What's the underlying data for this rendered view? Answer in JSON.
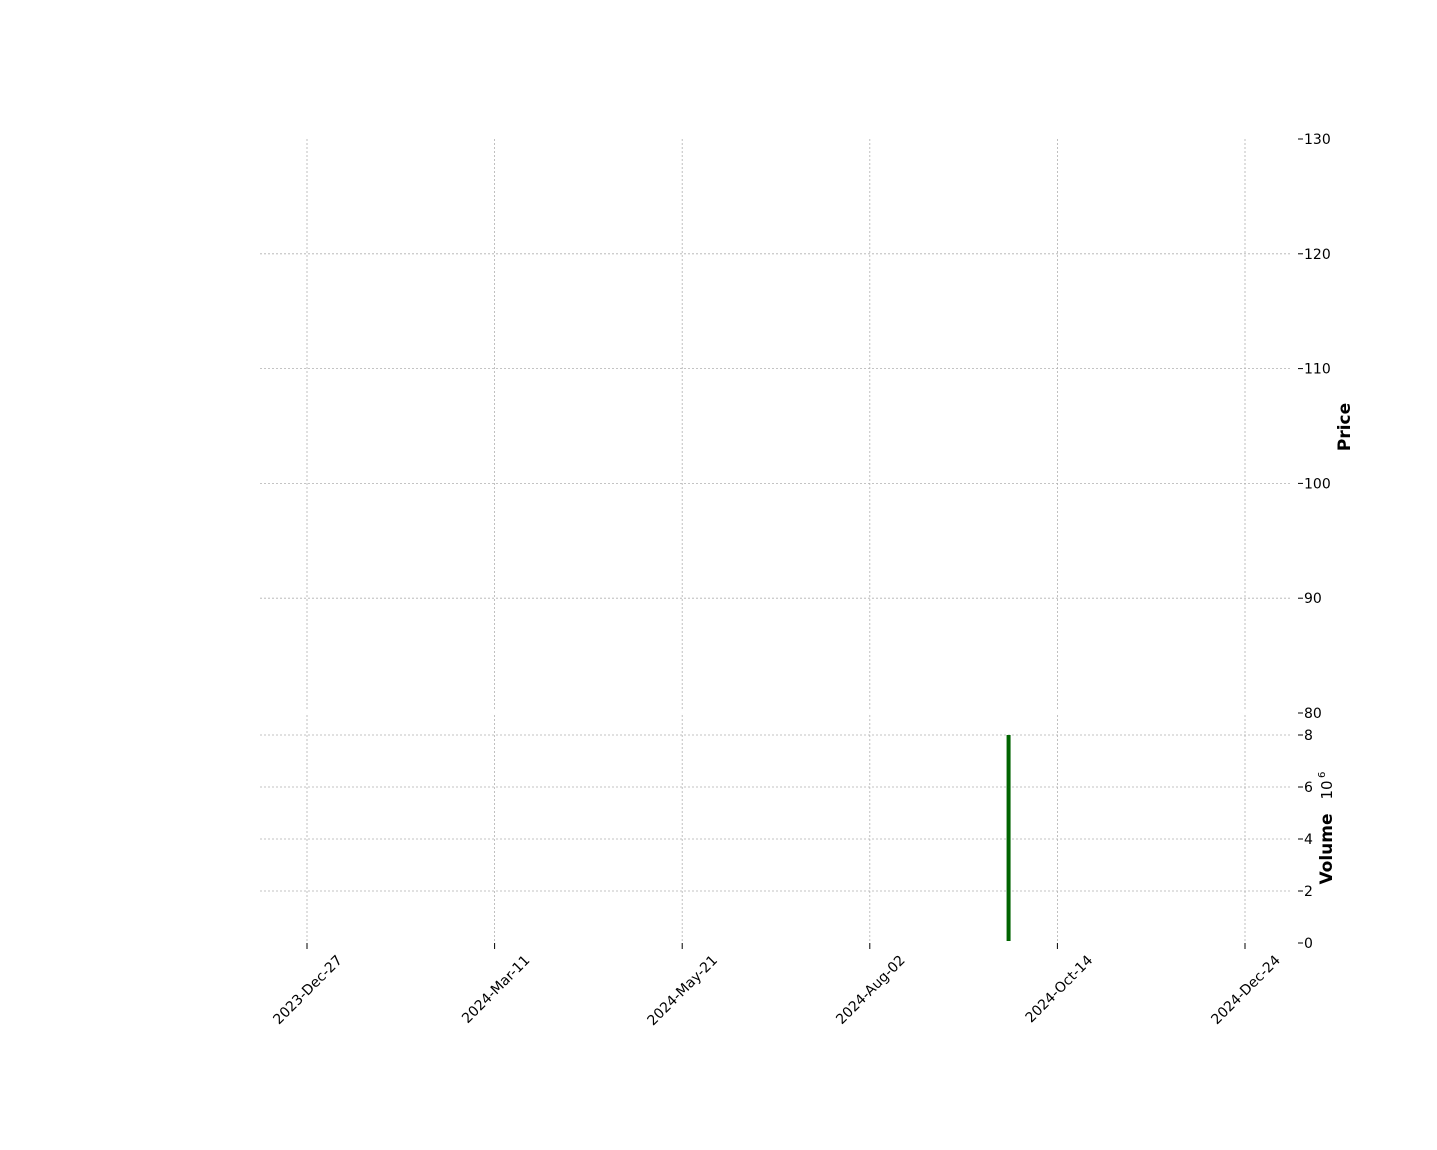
{
  "chart_data": [
    {
      "type": "candlestick",
      "panel": "price",
      "ylabel": "Price",
      "ylim": [
        80,
        130
      ],
      "y_ticks": [
        80,
        90,
        100,
        110,
        120,
        130
      ],
      "grid": true,
      "y_axis_side": "right",
      "candles": []
    },
    {
      "type": "bar",
      "panel": "volume",
      "ylabel": "Volume",
      "y_exponent_label": "10",
      "y_exponent_power": "6",
      "ylim": [
        0,
        8
      ],
      "y_ticks": [
        "0",
        "2",
        "4",
        "6",
        "8"
      ],
      "grid": true,
      "y_axis_side": "right",
      "bars": [
        {
          "date": "2024-Sep-25",
          "value": 8.0,
          "color": "#006400"
        }
      ]
    }
  ],
  "x_axis": {
    "tick_labels": [
      "2023-Dec-27",
      "2024-Mar-11",
      "2024-May-21",
      "2024-Aug-02",
      "2024-Oct-14",
      "2024-Dec-24"
    ],
    "tick_indices": [
      0,
      1,
      2,
      3,
      4,
      5
    ]
  }
}
